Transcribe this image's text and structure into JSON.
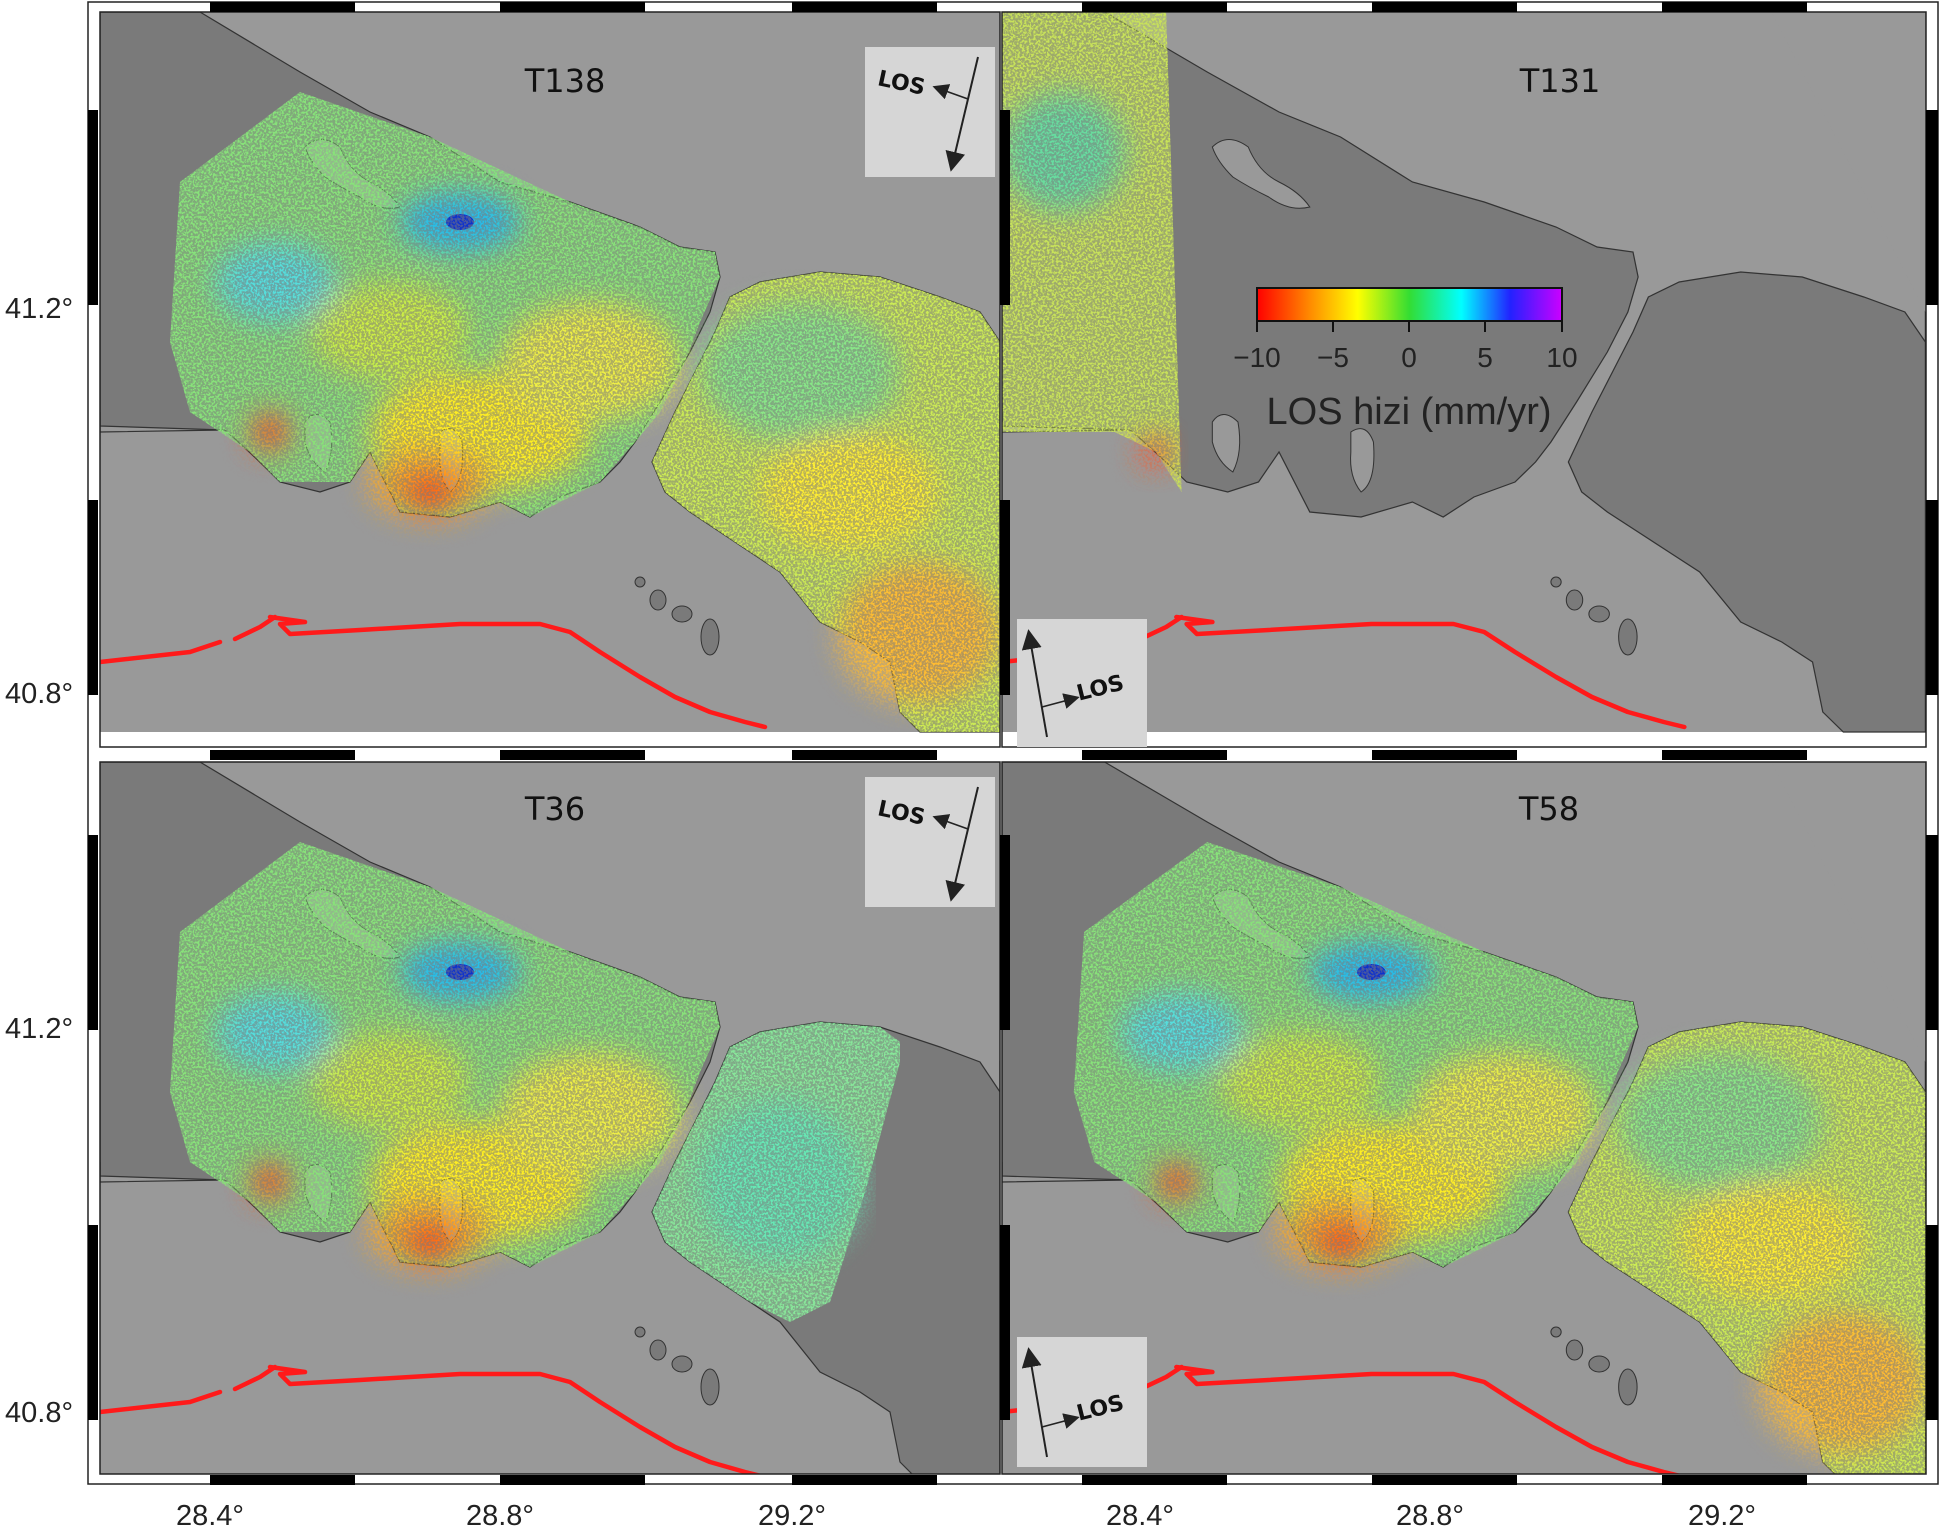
{
  "panels": [
    {
      "id": "T138",
      "title": "T138",
      "los_label": "LOS",
      "coverage": "full-east"
    },
    {
      "id": "T131",
      "title": "T131",
      "los_label": "LOS",
      "coverage": "west-strip"
    },
    {
      "id": "T36",
      "title": "T36",
      "los_label": "LOS",
      "coverage": "partial-east"
    },
    {
      "id": "T58",
      "title": "T58",
      "los_label": "LOS",
      "coverage": "full-east"
    }
  ],
  "axes": {
    "lat_labels": [
      "41.2°",
      "40.8°"
    ],
    "lon_labels": [
      "28.4°",
      "28.8°",
      "29.2°"
    ]
  },
  "colorbar": {
    "title": "LOS hizi (mm/yr)",
    "ticks": [
      "−10",
      "−5",
      "0",
      "5",
      "10"
    ],
    "min": -10,
    "max": 10,
    "colors": [
      "#ff0000",
      "#ff8800",
      "#ffff00",
      "#33dd33",
      "#00ffff",
      "#2222ff",
      "#cc00ff"
    ]
  },
  "colors": {
    "sea": "#999999",
    "land": "#7a7a7a",
    "fault": "#ff1a1a"
  }
}
